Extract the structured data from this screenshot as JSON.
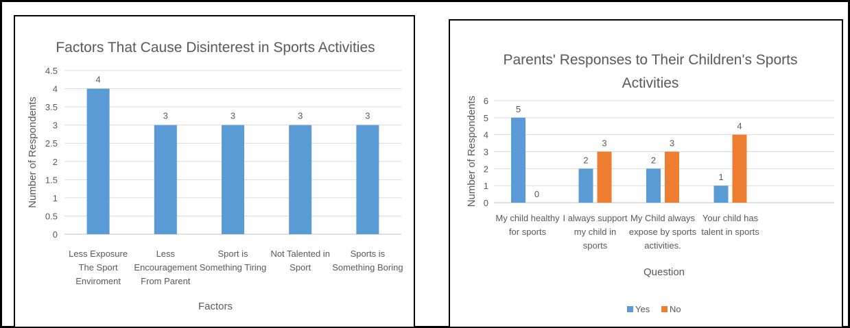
{
  "chart_data": [
    {
      "type": "bar",
      "title": "Factors That Cause Disinterest in Sports Activities",
      "xlabel": "Factors",
      "ylabel": "Number of Respondents",
      "ylim": [
        0,
        4.5
      ],
      "yticks": [
        "0",
        "0.5",
        "1",
        "1.5",
        "2",
        "2.5",
        "3",
        "3.5",
        "4",
        "4.5"
      ],
      "categories": [
        [
          "Less Exposure",
          "The Sport",
          "Enviroment"
        ],
        [
          "Less",
          "Encouragement",
          "From Parent"
        ],
        [
          "Sport is",
          "Something Tiring"
        ],
        [
          "Not Talented in",
          "Sport"
        ],
        [
          "Sports is",
          "Something Boring"
        ]
      ],
      "values": [
        4,
        3,
        3,
        3,
        3
      ],
      "data_labels": [
        "4",
        "3",
        "3",
        "3",
        "3"
      ],
      "grid": true,
      "colors": {
        "bar": "#5b9bd5",
        "grid": "#d9d9d9",
        "axis": "#bfbfbf"
      }
    },
    {
      "type": "bar",
      "title": [
        "Parents' Responses to Their Children's Sports",
        "Activities"
      ],
      "xlabel": "Question",
      "ylabel": "Number of Respondents",
      "ylim": [
        0,
        6
      ],
      "yticks": [
        "0",
        "1",
        "2",
        "3",
        "4",
        "5",
        "6"
      ],
      "categories": [
        [
          "My child healthy",
          "for sports"
        ],
        [
          "I always support",
          "my child in",
          "sports"
        ],
        [
          "My Child always",
          "expose by sports",
          "activities."
        ],
        [
          "Your child has",
          "talent in sports"
        ]
      ],
      "series": [
        {
          "name": "Yes",
          "values": [
            5,
            2,
            2,
            1
          ],
          "data_labels": [
            "5",
            "2",
            "2",
            "1"
          ],
          "color": "#5b9bd5"
        },
        {
          "name": "No",
          "values": [
            0,
            3,
            3,
            4
          ],
          "data_labels": [
            "0",
            "3",
            "3",
            "4"
          ],
          "color": "#ed7d31"
        }
      ],
      "legend_position": "bottom",
      "grid": true,
      "colors": {
        "grid": "#d9d9d9",
        "axis": "#bfbfbf"
      }
    }
  ]
}
